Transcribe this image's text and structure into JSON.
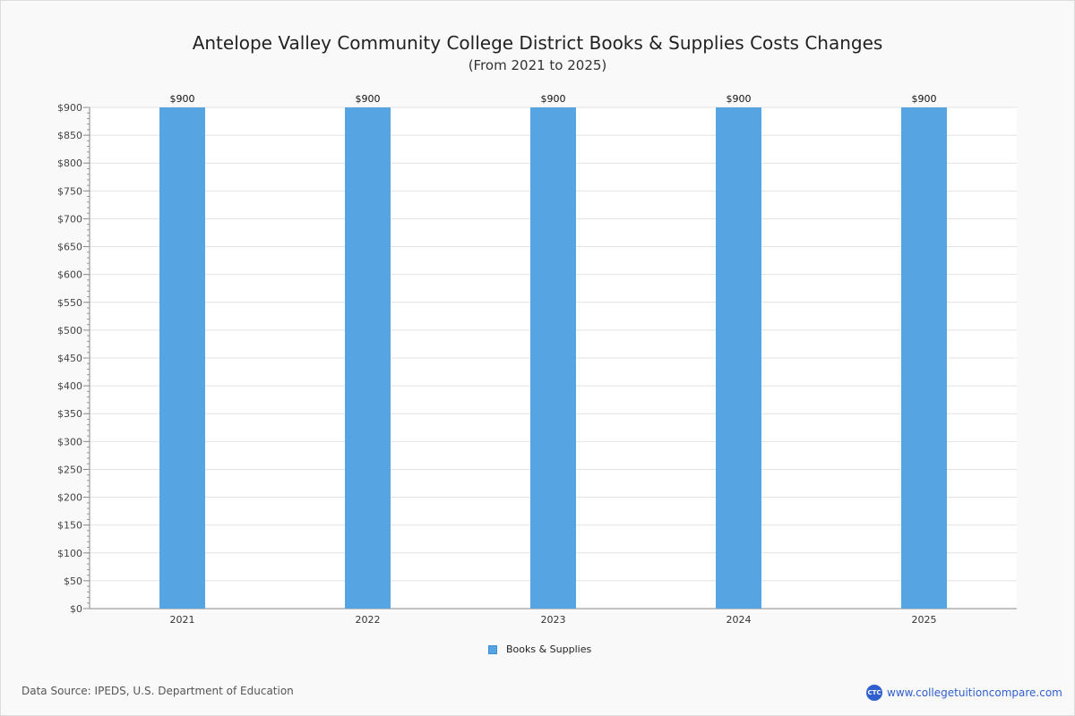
{
  "chart_data": {
    "type": "bar",
    "title": "Antelope Valley Community College District Books & Supplies Costs Changes",
    "subtitle": "(From 2021 to 2025)",
    "categories": [
      "2021",
      "2022",
      "2023",
      "2024",
      "2025"
    ],
    "series": [
      {
        "name": "Books & Supplies",
        "values": [
          900,
          900,
          900,
          900,
          900
        ],
        "color": "#56a5e2"
      }
    ],
    "data_labels": [
      "$900",
      "$900",
      "$900",
      "$900",
      "$900"
    ],
    "ylim": [
      0,
      900
    ],
    "yticks": [
      0,
      50,
      100,
      150,
      200,
      250,
      300,
      350,
      400,
      450,
      500,
      550,
      600,
      650,
      700,
      750,
      800,
      850,
      900
    ],
    "ytick_labels": [
      "$0",
      "$50",
      "$100",
      "$150",
      "$200",
      "$250",
      "$300",
      "$350",
      "$400",
      "$450",
      "$500",
      "$550",
      "$600",
      "$650",
      "$700",
      "$750",
      "$800",
      "$850",
      "$900"
    ],
    "grid": true,
    "legend_position": "bottom"
  },
  "footer": {
    "source": "Data Source: IPEDS, U.S. Department of Education",
    "brand_logo": "CTC",
    "brand_url": "www.collegetuitioncompare.com"
  }
}
